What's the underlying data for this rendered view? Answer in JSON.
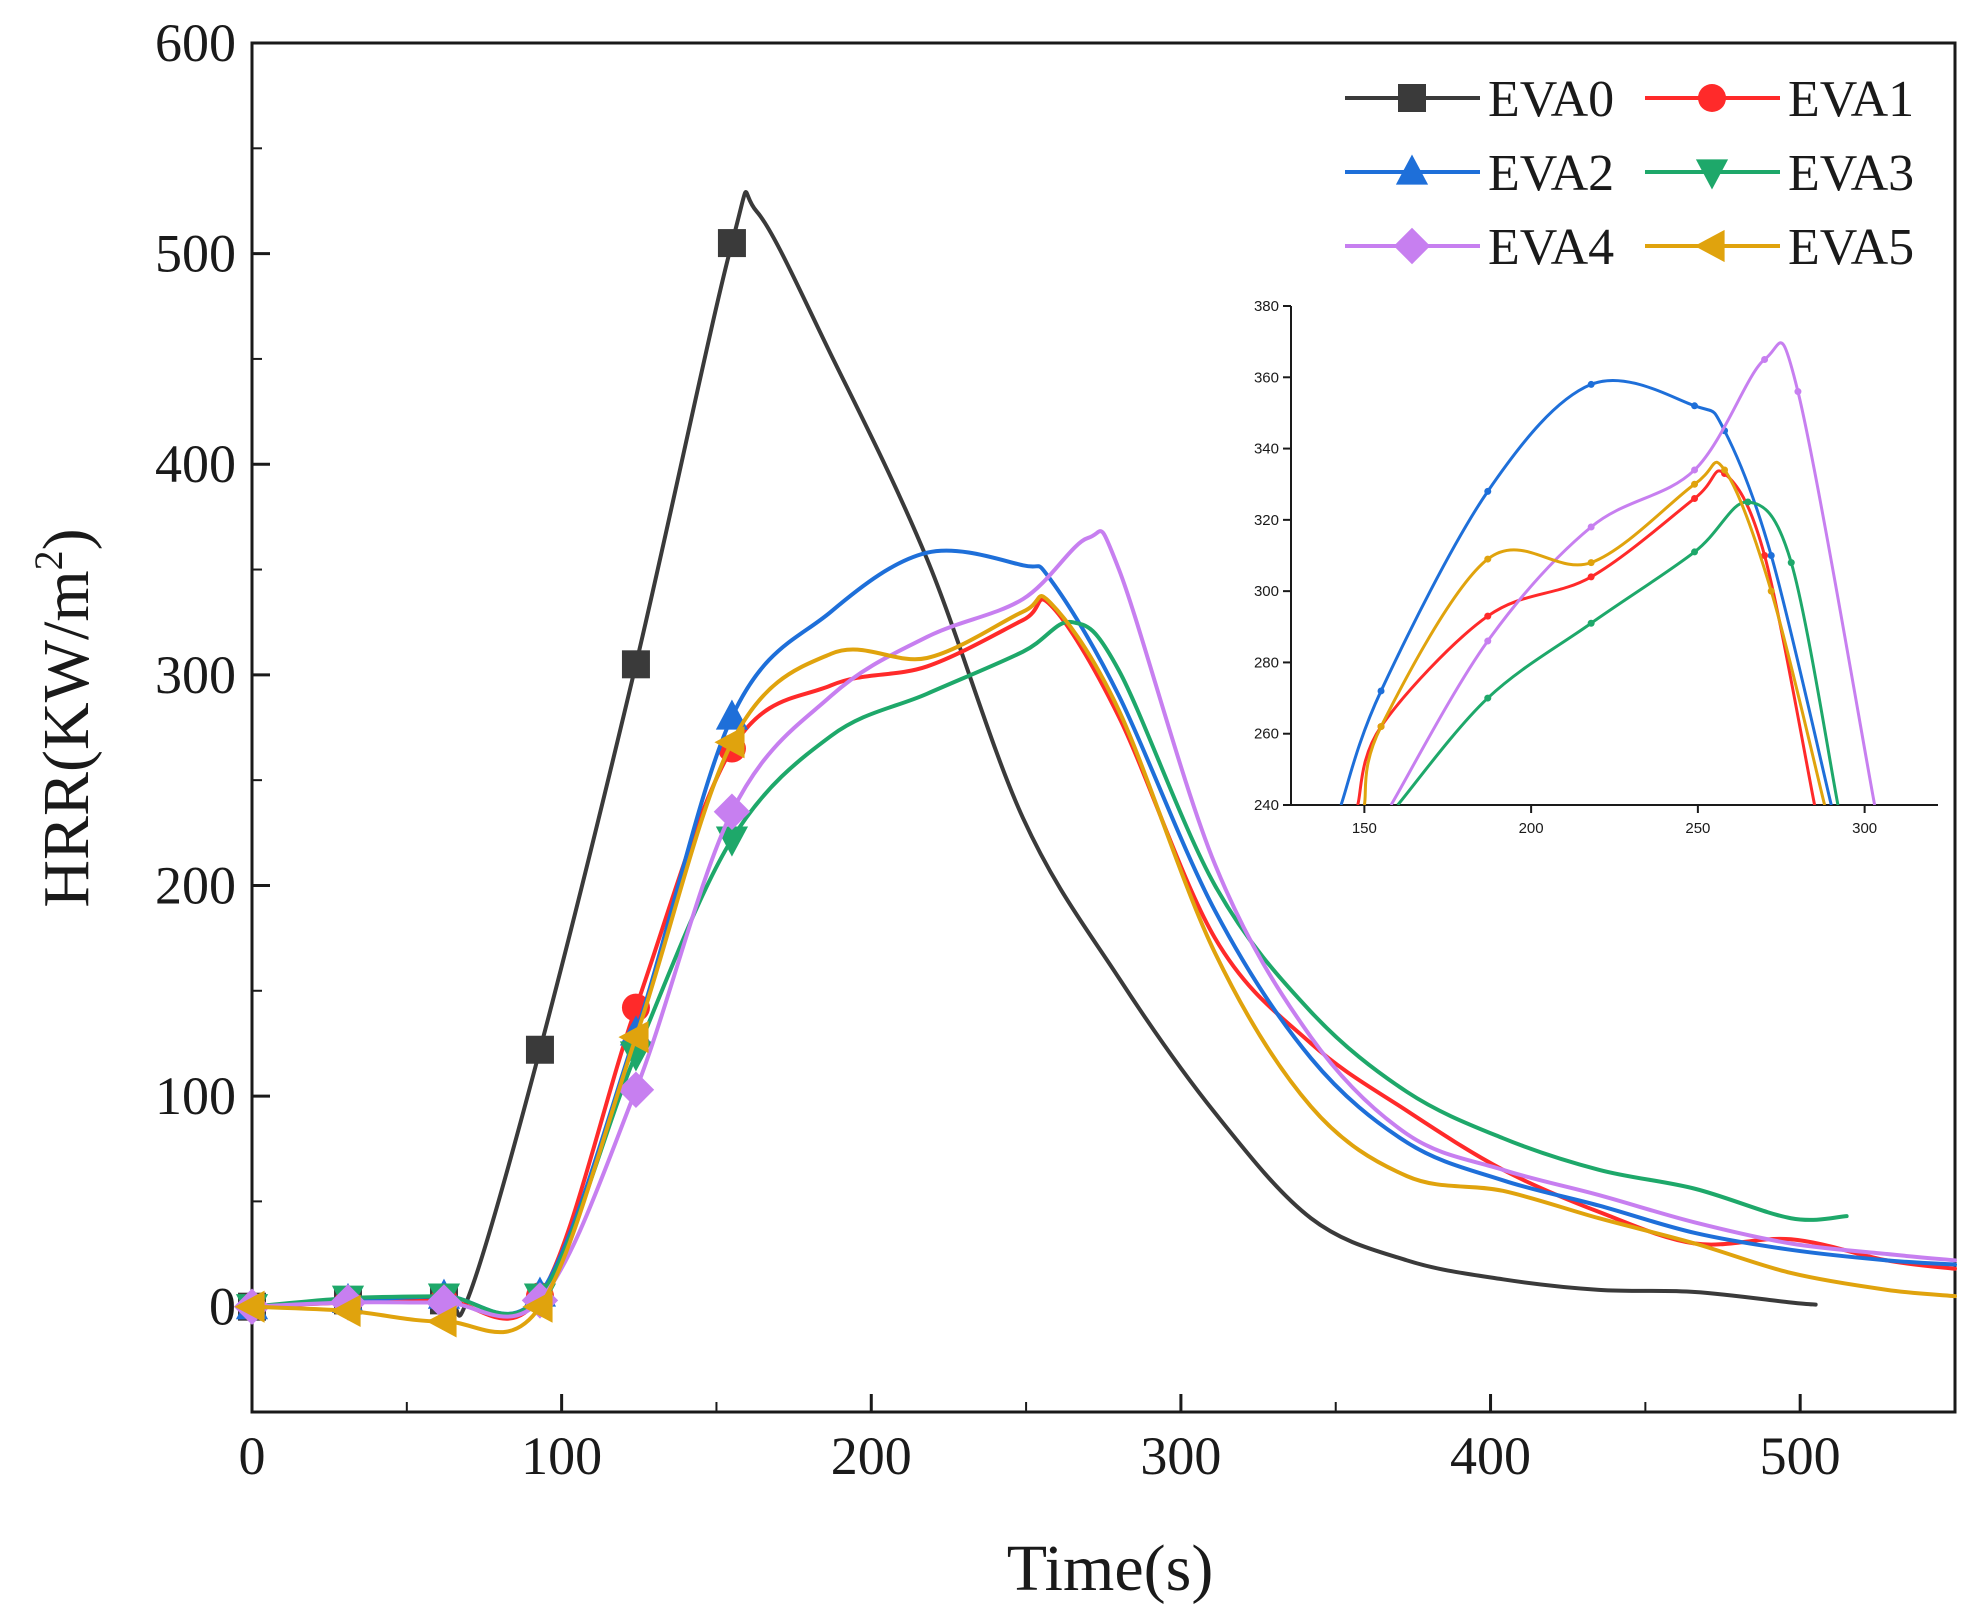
{
  "chart_data": [
    {
      "type": "line",
      "title": "",
      "xlabel": "Time(s)",
      "ylabel_main": "HRR(KW/m",
      "ylabel_sup": "2",
      "ylabel_close": ")",
      "xlim": [
        0,
        550
      ],
      "ylim": [
        -50,
        600
      ],
      "xticks": [
        0,
        100,
        200,
        300,
        400,
        500
      ],
      "yticks": [
        0,
        100,
        200,
        300,
        400,
        500,
        600
      ],
      "grid": false,
      "legend_position": "top-right",
      "series": [
        {
          "name": "EVA0",
          "color": "#3a3a3a",
          "marker": "square",
          "x": [
            0,
            31,
            62,
            70,
            93,
            124,
            155,
            163,
            187,
            218,
            249,
            280,
            311,
            342,
            373,
            404,
            435,
            466,
            497,
            505
          ],
          "y": [
            0,
            3,
            3,
            5,
            122,
            305,
            505,
            520,
            452,
            355,
            232,
            156,
            92,
            42,
            22,
            13,
            8,
            7,
            2,
            1
          ]
        },
        {
          "name": "EVA1",
          "color": "#ff2a2a",
          "marker": "circle",
          "x": [
            0,
            31,
            62,
            93,
            124,
            155,
            187,
            218,
            249,
            258,
            280,
            311,
            342,
            373,
            404,
            435,
            466,
            497,
            528,
            550
          ],
          "y": [
            0,
            2,
            3,
            5,
            142,
            265,
            295,
            304,
            326,
            333,
            280,
            175,
            125,
            93,
            65,
            45,
            30,
            32,
            22,
            18
          ]
        },
        {
          "name": "EVA2",
          "color": "#1e6fd9",
          "marker": "triangle-up",
          "x": [
            0,
            31,
            62,
            93,
            124,
            155,
            187,
            218,
            249,
            258,
            280,
            311,
            342,
            373,
            404,
            435,
            466,
            497,
            528,
            550
          ],
          "y": [
            0,
            3,
            5,
            6,
            130,
            280,
            330,
            358,
            352,
            345,
            290,
            188,
            118,
            78,
            60,
            48,
            35,
            27,
            22,
            20
          ]
        },
        {
          "name": "EVA3",
          "color": "#1ea86a",
          "marker": "triangle-down",
          "x": [
            0,
            31,
            62,
            93,
            124,
            155,
            187,
            218,
            249,
            265,
            280,
            311,
            342,
            373,
            404,
            435,
            466,
            497,
            515
          ],
          "y": [
            0,
            4,
            5,
            5,
            120,
            222,
            271,
            291,
            311,
            325,
            302,
            200,
            140,
            102,
            80,
            65,
            56,
            42,
            43
          ]
        },
        {
          "name": "EVA4",
          "color": "#c77ff0",
          "marker": "diamond",
          "x": [
            0,
            31,
            62,
            93,
            124,
            155,
            187,
            218,
            249,
            270,
            280,
            311,
            342,
            373,
            404,
            435,
            466,
            497,
            528,
            550
          ],
          "y": [
            0,
            2,
            2,
            3,
            103,
            235,
            290,
            318,
            336,
            365,
            350,
            210,
            128,
            82,
            65,
            53,
            40,
            30,
            25,
            22
          ]
        },
        {
          "name": "EVA5",
          "color": "#e0a30d",
          "marker": "triangle-left",
          "x": [
            0,
            31,
            62,
            93,
            124,
            155,
            187,
            218,
            249,
            258,
            280,
            311,
            342,
            373,
            404,
            435,
            466,
            497,
            528,
            550
          ],
          "y": [
            0,
            -2,
            -7,
            0,
            128,
            268,
            310,
            308,
            330,
            334,
            283,
            168,
            95,
            62,
            55,
            42,
            30,
            16,
            8,
            5
          ]
        }
      ]
    },
    {
      "type": "line",
      "title": "",
      "xlabel": "",
      "ylabel": "",
      "xlim": [
        128,
        322
      ],
      "ylim": [
        240,
        380
      ],
      "xticks": [
        150,
        200,
        250,
        300
      ],
      "yticks": [
        240,
        260,
        280,
        300,
        320,
        340,
        360,
        380
      ],
      "grid": false,
      "series": [
        {
          "color": "#1e6fd9",
          "x": [
            143,
            155,
            187,
            218,
            249,
            258,
            272,
            290
          ],
          "y": [
            240,
            272,
            328,
            358,
            352,
            345,
            310,
            240
          ]
        },
        {
          "color": "#ff2a2a",
          "x": [
            148,
            155,
            187,
            218,
            249,
            258,
            270,
            285
          ],
          "y": [
            240,
            262,
            293,
            304,
            326,
            333,
            310,
            240
          ]
        },
        {
          "color": "#1ea86a",
          "x": [
            160,
            187,
            218,
            249,
            265,
            278,
            292
          ],
          "y": [
            240,
            270,
            291,
            311,
            325,
            308,
            240
          ]
        },
        {
          "color": "#c77ff0",
          "x": [
            158,
            187,
            218,
            249,
            270,
            280,
            303
          ],
          "y": [
            240,
            286,
            318,
            334,
            365,
            356,
            240
          ]
        },
        {
          "color": "#e0a30d",
          "x": [
            150,
            155,
            187,
            218,
            249,
            258,
            272,
            288
          ],
          "y": [
            240,
            262,
            309,
            308,
            330,
            334,
            300,
            240
          ]
        }
      ]
    }
  ]
}
